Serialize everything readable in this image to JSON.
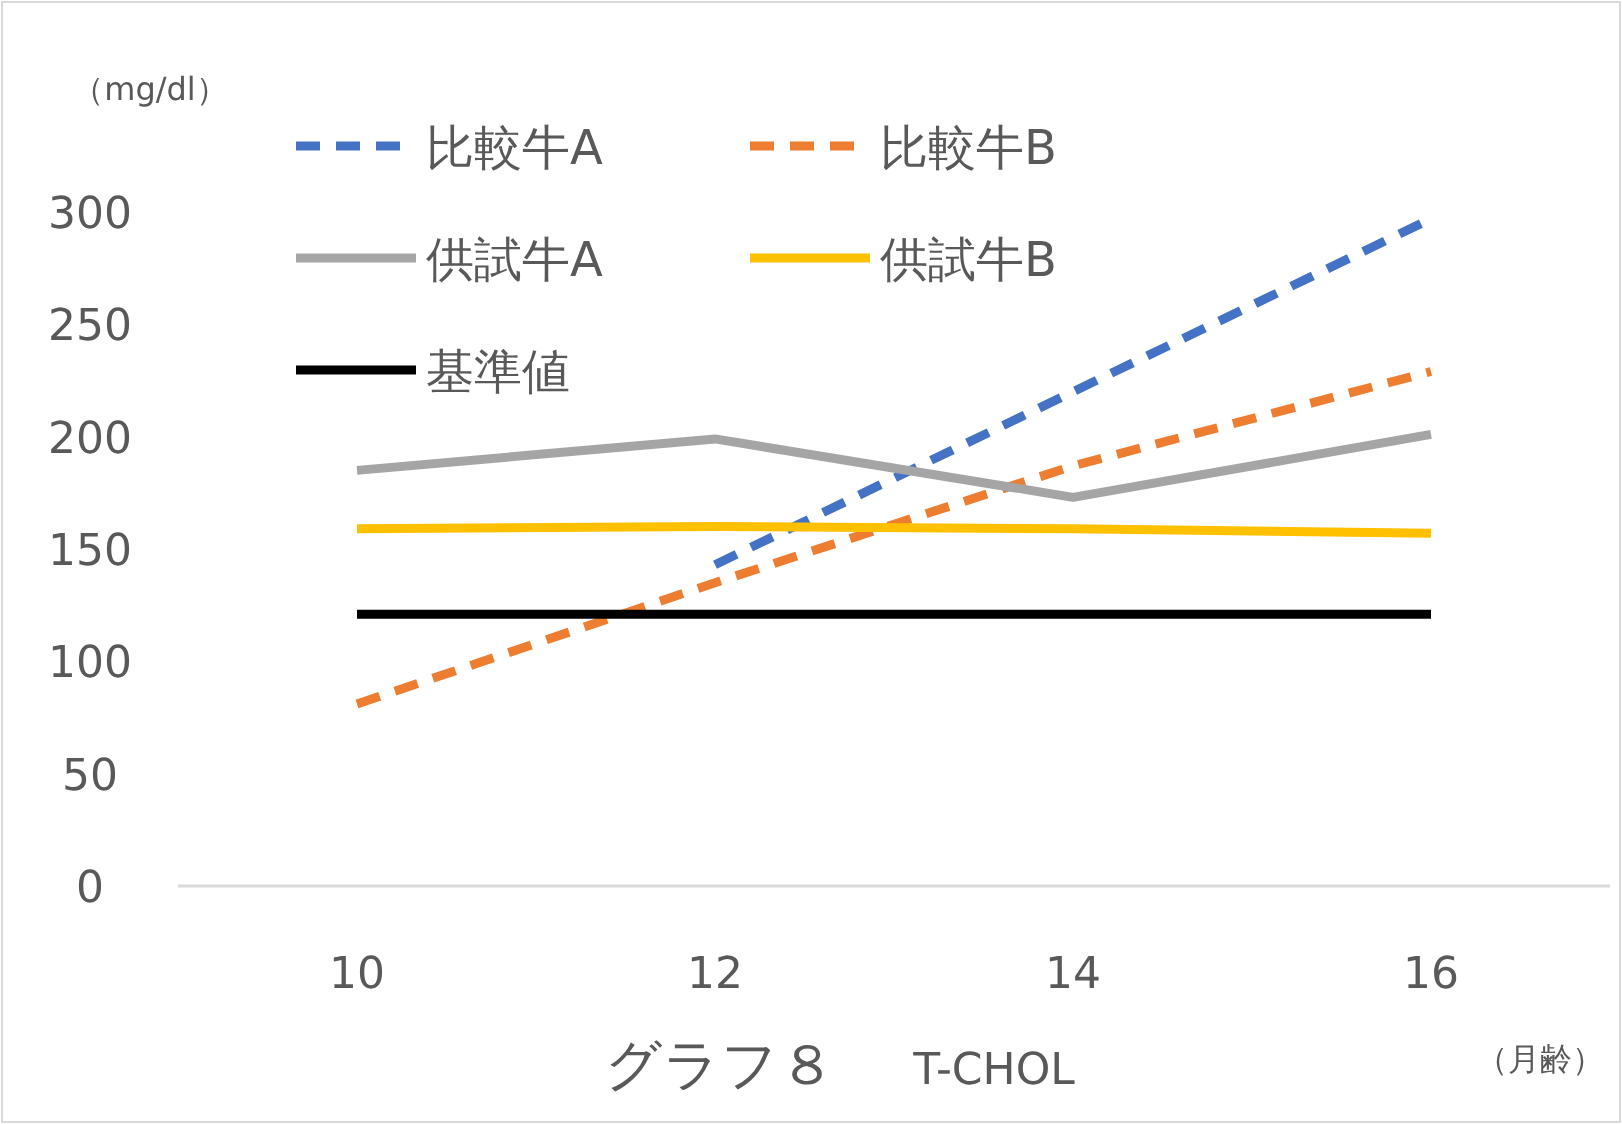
{
  "chart_data": {
    "type": "line",
    "title": "グラフ８",
    "subtitle": "T-CHOL",
    "xlabel": "（月齢）",
    "ylabel": "（mg/dl）",
    "categories": [
      "10",
      "12",
      "14",
      "16"
    ],
    "ylim": [
      0,
      300
    ],
    "yticks": [
      0,
      50,
      100,
      150,
      200,
      250,
      300
    ],
    "grid": false,
    "legend": "top left",
    "marker": "none",
    "series": [
      {
        "name": "比較牛A",
        "color": "#4472c4",
        "line_style": "dashed",
        "values": [
          null,
          143,
          220,
          297
        ]
      },
      {
        "name": "比較牛B",
        "color": "#ed7d31",
        "line_style": "dashed",
        "values": [
          81,
          135,
          187,
          229
        ]
      },
      {
        "name": "供試牛A",
        "color": "#a5a5a5",
        "line_style": "solid",
        "values": [
          185,
          199,
          173,
          201
        ]
      },
      {
        "name": "供試牛B",
        "color": "#ffc000",
        "line_style": "solid",
        "values": [
          159,
          160,
          159,
          157
        ]
      },
      {
        "name": "基準値",
        "color": "#000000",
        "line_style": "solid",
        "values": [
          121,
          121,
          121,
          121
        ]
      }
    ]
  }
}
